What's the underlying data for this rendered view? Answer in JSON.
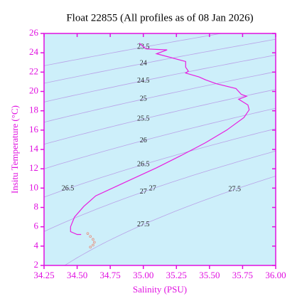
{
  "chart_data": {
    "type": "line",
    "title": "Float 22855  (All profiles as of 08 Jan 2026)",
    "xlabel": "Salinity (PSU)",
    "ylabel": "Insitu Temperature (°C)",
    "xlim": [
      34.25,
      36.0
    ],
    "ylim": [
      2,
      26
    ],
    "xticks": [
      {
        "value": 34.25,
        "label": "34.25"
      },
      {
        "value": 34.5,
        "label": "34.50"
      },
      {
        "value": 34.75,
        "label": "34.75"
      },
      {
        "value": 35.0,
        "label": "35.00"
      },
      {
        "value": 35.25,
        "label": "35.25"
      },
      {
        "value": 35.5,
        "label": "35.50"
      },
      {
        "value": 35.75,
        "label": "35.75"
      },
      {
        "value": 36.0,
        "label": "36.00"
      }
    ],
    "yticks": [
      2,
      4,
      6,
      8,
      10,
      12,
      14,
      16,
      18,
      20,
      22,
      24,
      26
    ],
    "background": "#cdeffa",
    "axis_color": "#e010e0",
    "contour_color": "#b9a3e8",
    "contour_levels": [
      23.5,
      24,
      24.5,
      25,
      25.5,
      26,
      26.5,
      27,
      27.5
    ],
    "contour_side_labels": [
      26.5,
      27,
      27.5
    ],
    "series": [
      {
        "color": "#e81ee0",
        "x": [
          34.97,
          35.02,
          35.18,
          35.1,
          35.32,
          35.32,
          35.34,
          35.32,
          35.42,
          35.47,
          35.55,
          35.7,
          35.74,
          35.78,
          35.72,
          35.79,
          35.8,
          35.76,
          35.63,
          35.47,
          35.29,
          35.1,
          34.83,
          34.64,
          34.55,
          34.48,
          34.45,
          34.45,
          34.5,
          34.53
        ],
        "values": [
          25.0,
          24.4,
          24.3,
          23.9,
          23.1,
          22.5,
          22.1,
          21.9,
          21.5,
          21.2,
          20.8,
          20.3,
          19.7,
          19.5,
          19.2,
          18.6,
          18.1,
          17.3,
          16.0,
          14.7,
          13.4,
          12.1,
          10.4,
          9.2,
          8.1,
          7.0,
          6.0,
          5.5,
          5.2,
          5.2
        ]
      },
      {
        "color": "#e8907e",
        "x": [
          34.58,
          34.6,
          34.62,
          34.63,
          34.62,
          34.6
        ],
        "values": [
          5.3,
          5.0,
          4.7,
          4.4,
          4.1,
          3.9
        ]
      }
    ]
  }
}
